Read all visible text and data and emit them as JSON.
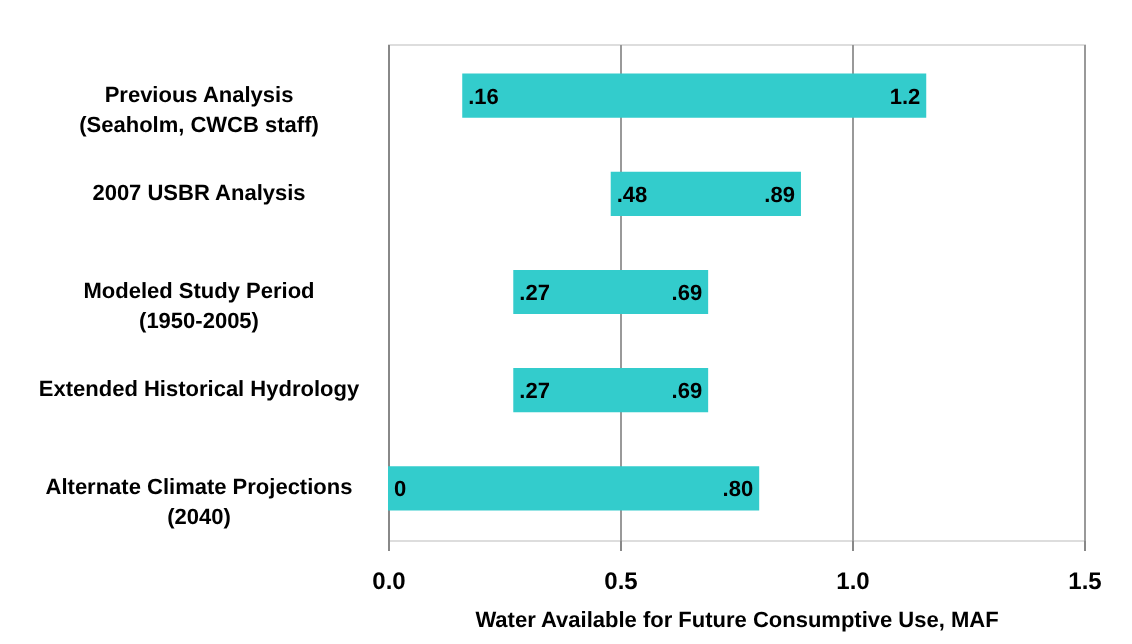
{
  "chart_data": {
    "type": "bar",
    "orientation": "horizontal",
    "xlabel": "Water Available for Future Consumptive Use, MAF",
    "categories": [
      "Previous Analysis\n(Seaholm, CWCB staff)",
      "2007 USBR Analysis",
      "Modeled Study Period\n(1950-2005)",
      "Extended Historical Hydrology",
      "Alternate Climate Projections\n(2040)"
    ],
    "base": [
      0.16,
      0.48,
      0.27,
      0.27,
      0
    ],
    "values": [
      1.0,
      0.41,
      0.42,
      0.42,
      0.8
    ],
    "color": "#33cccc",
    "xlim": [
      0,
      1.5
    ],
    "xticks": [
      {
        "value": 0,
        "label": "0.0"
      },
      0.5,
      {
        "value": 1,
        "label": "1.0"
      },
      1.5
    ],
    "grid": "x",
    "annotations": [
      {
        "text": ".16",
        "x": 0.16,
        "y": "Previous Analysis\n(Seaholm, CWCB staff)"
      },
      {
        "text": "1.2",
        "x": 1.16,
        "y": "Previous Analysis\n(Seaholm, CWCB staff)"
      },
      {
        "text": ".48",
        "x": 0.48,
        "y": "2007 USBR Analysis"
      },
      {
        "text": ".89",
        "x": 0.89,
        "y": "2007 USBR Analysis"
      },
      {
        "text": ".27",
        "x": 0.27,
        "y": "Modeled Study Period\n(1950-2005)"
      },
      {
        "text": ".69",
        "x": 0.69,
        "y": "Modeled Study Period\n(1950-2005)"
      },
      {
        "text": ".27",
        "x": 0.27,
        "y": "Extended Historical Hydrology"
      },
      {
        "text": ".69",
        "x": 0.69,
        "y": "Extended Historical Hydrology"
      },
      {
        "text": "0",
        "x": 0,
        "y": "Alternate Climate Projections\n(2040)"
      },
      {
        "text": ".80",
        "x": 0.8,
        "y": "Alternate Climate Projections\n(2040)"
      }
    ]
  }
}
